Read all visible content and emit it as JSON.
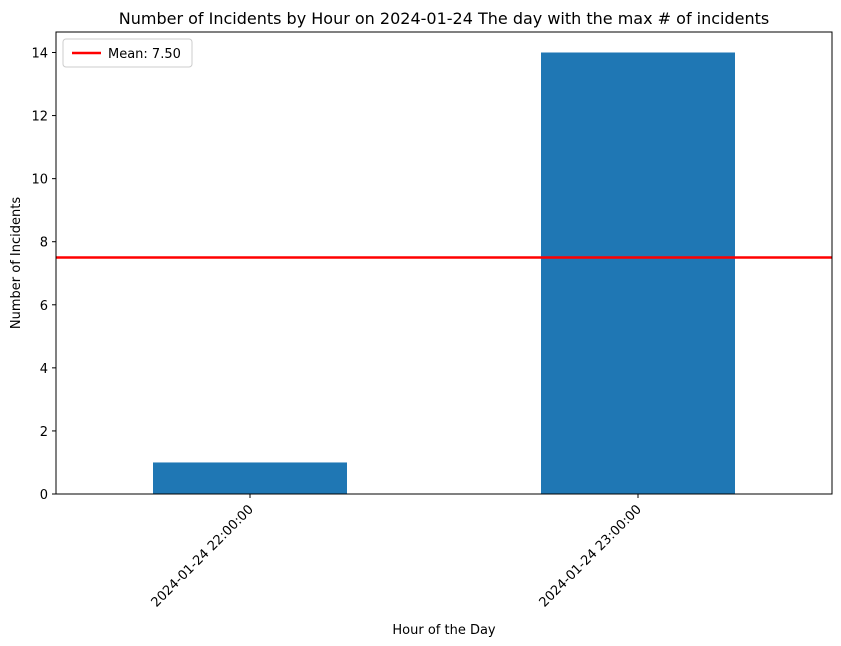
{
  "chart_data": {
    "type": "bar",
    "title": "Number of Incidents by Hour on 2024-01-24 The day with the max # of incidents",
    "xlabel": "Hour of the Day",
    "ylabel": "Number of Incidents",
    "categories": [
      "2024-01-24 22:00:00",
      "2024-01-24 23:00:00"
    ],
    "values": [
      1,
      14
    ],
    "ylim": [
      0,
      14.65
    ],
    "yticks": [
      0,
      2,
      4,
      6,
      8,
      10,
      12,
      14
    ],
    "grid": false,
    "bar_color": "#1f77b4",
    "mean": {
      "value": 7.5,
      "label": "Mean: 7.50",
      "color": "#ff0000"
    },
    "legend": {
      "position": "top-left"
    }
  }
}
